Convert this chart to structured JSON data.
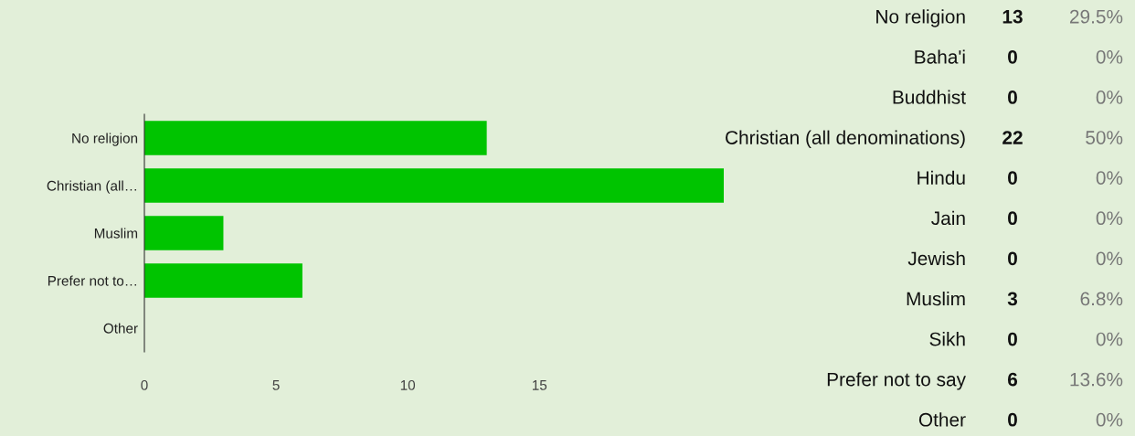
{
  "chart_data": [
    {
      "type": "bar",
      "orientation": "horizontal",
      "categories": [
        "No religion",
        "Christian (all…",
        "Muslim",
        "Prefer not to…",
        "Other"
      ],
      "values": [
        13,
        22,
        3,
        6,
        0
      ],
      "color": "#00c400",
      "xlim": [
        0,
        22
      ],
      "xticks": [
        0,
        5,
        10,
        15
      ],
      "grid": false,
      "legend": false
    },
    {
      "type": "other",
      "categories": [
        "No religion",
        "Baha'i",
        "Buddhist",
        "Christian (all denominations)",
        "Hindu",
        "Jain",
        "Jewish",
        "Muslim",
        "Sikh",
        "Prefer not to say",
        "Other"
      ],
      "series": [
        {
          "values": [
            13,
            0,
            0,
            22,
            0,
            0,
            0,
            3,
            0,
            6,
            0
          ],
          "data_labels": true
        },
        {
          "values": [
            29.5,
            0,
            0,
            50,
            0,
            0,
            0,
            6.8,
            0,
            13.6,
            0
          ],
          "value_labels": [
            "29.5%",
            "0%",
            "0%",
            "50%",
            "0%",
            "0%",
            "0%",
            "6.8%",
            "0%",
            "13.6%",
            "0%"
          ]
        }
      ]
    }
  ]
}
